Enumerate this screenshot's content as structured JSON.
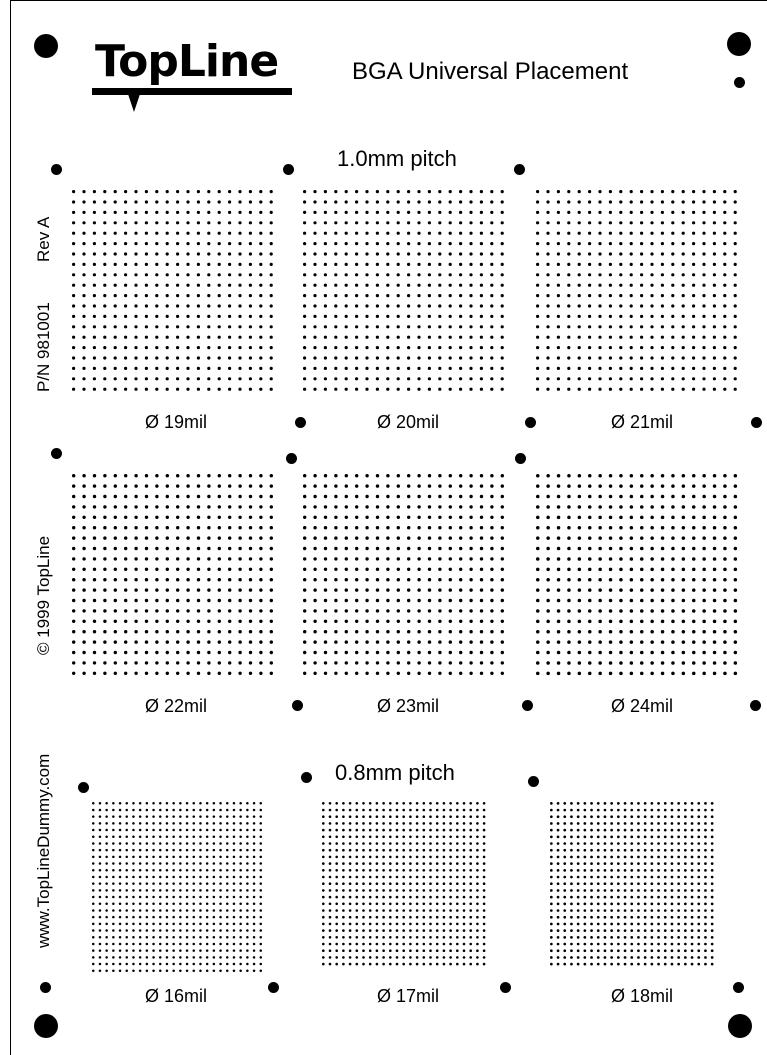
{
  "header": {
    "logo_text": "TopLine",
    "title": "BGA Universal Placement"
  },
  "side_text": {
    "rev": "Rev A",
    "part_number": "P/N 981001",
    "copyright": "© 1999 TopLine",
    "website": "www.TopLineDummy.com"
  },
  "sections": [
    {
      "pitch_label": "1.0mm pitch",
      "rows": [
        {
          "arrays": [
            {
              "label": "Ø 19mil"
            },
            {
              "label": "Ø 20mil"
            },
            {
              "label": "Ø 21mil"
            }
          ]
        },
        {
          "arrays": [
            {
              "label": "Ø 22mil"
            },
            {
              "label": "Ø 23mil"
            },
            {
              "label": "Ø 24mil"
            }
          ]
        }
      ]
    },
    {
      "pitch_label": "0.8mm pitch",
      "rows": [
        {
          "arrays": [
            {
              "label": "Ø 16mil"
            },
            {
              "label": "Ø 17mil"
            },
            {
              "label": "Ø 18mil"
            }
          ]
        }
      ]
    }
  ],
  "colors": {
    "ink": "#000000",
    "background": "#ffffff"
  }
}
